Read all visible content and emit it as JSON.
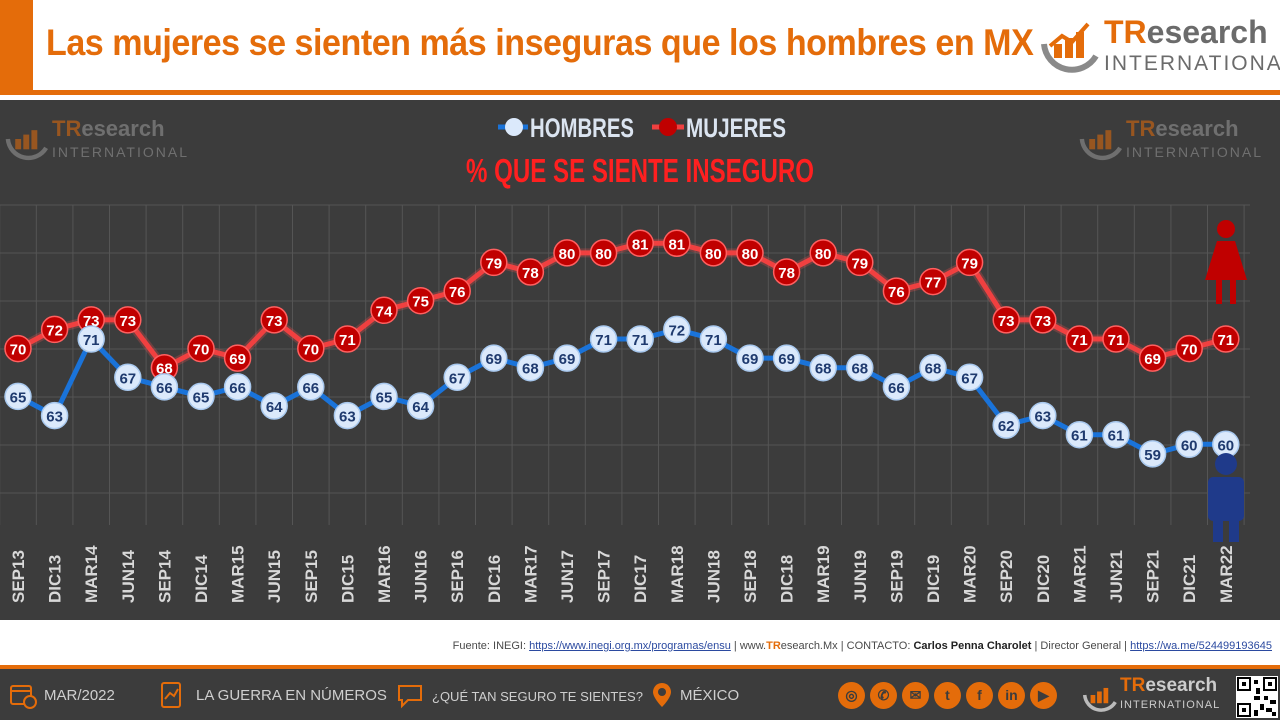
{
  "header": {
    "title": "Las mujeres se sienten más inseguras que los hombres en MX",
    "logo_brand_tr": "TR",
    "logo_brand_rest": "esearch",
    "logo_sub": "INTERNATIONAL"
  },
  "chart_data": {
    "type": "line",
    "title": "% QUE SE SIENTE INSEGURO",
    "categories": [
      "SEP13",
      "DIC13",
      "MAR14",
      "JUN14",
      "SEP14",
      "DIC14",
      "MAR15",
      "JUN15",
      "SEP15",
      "DIC15",
      "MAR16",
      "JUN16",
      "SEP16",
      "DIC16",
      "MAR17",
      "JUN17",
      "SEP17",
      "DIC17",
      "MAR18",
      "JUN18",
      "SEP18",
      "DIC18",
      "MAR19",
      "JUN19",
      "SEP19",
      "DIC19",
      "MAR20",
      "SEP20",
      "DIC20",
      "MAR21",
      "JUN21",
      "SEP21",
      "DIC21",
      "MAR22"
    ],
    "series": [
      {
        "name": "HOMBRES",
        "color": "#1a73d9",
        "marker_fill": "#dbe9fb",
        "label_color": "#1f3a6e",
        "values": [
          65,
          63,
          71,
          67,
          66,
          65,
          66,
          64,
          66,
          63,
          65,
          64,
          67,
          69,
          68,
          69,
          71,
          71,
          72,
          71,
          69,
          69,
          68,
          68,
          66,
          68,
          67,
          62,
          63,
          61,
          61,
          59,
          60,
          60
        ]
      },
      {
        "name": "MUJERES",
        "color": "#f04040",
        "marker_fill": "#c00000",
        "label_color": "#ffffff",
        "values": [
          70,
          72,
          73,
          73,
          68,
          70,
          69,
          73,
          70,
          71,
          74,
          75,
          76,
          79,
          78,
          80,
          80,
          81,
          81,
          80,
          80,
          78,
          80,
          79,
          76,
          77,
          79,
          73,
          73,
          71,
          71,
          69,
          70,
          71
        ]
      }
    ],
    "ylim": [
      50,
      85
    ],
    "grid": true,
    "legend": "top-center",
    "xlabel": "",
    "ylabel": ""
  },
  "footer": {
    "source_label": "Fuente:",
    "source_org": "INEGI:",
    "source_url": "https://www.inegi.org.mx/programas/ensu",
    "site_prefix": "| www.",
    "site_tr": "TR",
    "site_rest": "esearch.Mx",
    "contact_label": "| CONTACTO:",
    "contact_name": "Carlos Penna Charolet",
    "contact_role": "| Director General |",
    "contact_url": "https://wa.me/524499193645"
  },
  "bottom_bar": {
    "date": "MAR/2022",
    "section": "LA GUERRA EN NÚMEROS",
    "question": "¿QUÉ TAN SEGURO TE SIENTES?",
    "country": "MÉXICO"
  },
  "colors": {
    "accent": "#e46c0a",
    "panel": "#3c3c3c",
    "men_icon": "#1f3a8a",
    "women_icon": "#c00000"
  },
  "icons": [
    "calendar-icon",
    "document-chart-icon",
    "speech-bubble-icon",
    "map-pin-icon",
    "globe-icon",
    "phone-icon",
    "mail-icon",
    "twitter-icon",
    "facebook-icon",
    "linkedin-icon",
    "youtube-icon",
    "qr-code-icon"
  ]
}
